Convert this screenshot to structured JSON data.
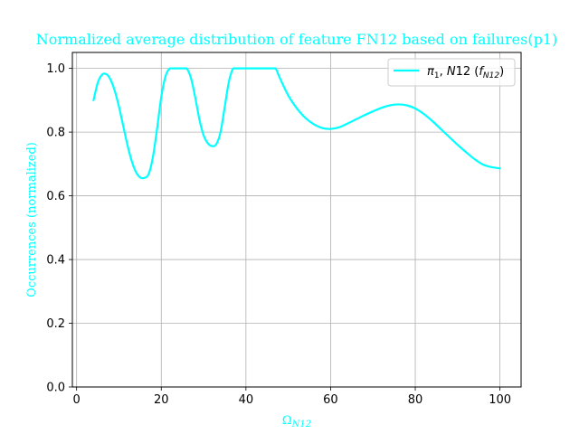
{
  "colors": {
    "accent": "#00ffff",
    "grid": "#b0b0b0",
    "axis": "#000000",
    "background": "#ffffff"
  },
  "chart_data": {
    "type": "line",
    "title": "Normalized average distribution of feature FN12 based on failures(p1)",
    "xlabel": "Ω",
    "xlabel_sub": "N12",
    "ylabel": "Occurrences (normalized)",
    "xlim": [
      -1,
      105
    ],
    "ylim": [
      0,
      1.05
    ],
    "xticks": [
      0,
      20,
      40,
      60,
      80,
      100
    ],
    "yticks": [
      0.0,
      0.2,
      0.4,
      0.6,
      0.8,
      1.0
    ],
    "xtick_labels": [
      "0",
      "20",
      "40",
      "60",
      "80",
      "100"
    ],
    "ytick_labels": [
      "0.0",
      "0.2",
      "0.4",
      "0.6",
      "0.8",
      "1.0"
    ],
    "grid": true,
    "legend_position": "top-right",
    "series": [
      {
        "name": "π1, N12 (fN12)",
        "legend": {
          "pi": "π",
          "pi_sub": "1",
          "mid": ", ",
          "n": "N",
          "n12": "12",
          "open": " (",
          "f": "f",
          "f_sub": "N12",
          "close": ")"
        },
        "color": "#00ffff",
        "x": [
          4,
          5,
          6,
          7,
          8,
          9,
          10,
          11,
          12,
          13,
          14,
          15,
          16,
          17,
          18,
          19,
          20,
          21,
          22,
          23,
          24,
          25,
          26,
          27,
          28,
          29,
          30,
          31,
          32,
          33,
          34,
          35,
          36,
          37,
          38,
          40,
          42,
          44,
          46,
          47,
          48,
          50,
          52,
          54,
          56,
          58,
          60,
          62,
          64,
          66,
          68,
          70,
          72,
          74,
          76,
          78,
          80,
          82,
          84,
          86,
          88,
          90,
          92,
          94,
          96,
          98,
          100
        ],
        "y": [
          0.9,
          0.955,
          0.98,
          0.982,
          0.965,
          0.93,
          0.88,
          0.82,
          0.76,
          0.71,
          0.675,
          0.658,
          0.656,
          0.668,
          0.72,
          0.81,
          0.91,
          0.975,
          1.0,
          1.0,
          1.0,
          1.0,
          1.0,
          0.97,
          0.91,
          0.84,
          0.79,
          0.765,
          0.756,
          0.762,
          0.8,
          0.88,
          0.96,
          1.0,
          1.0,
          1.0,
          1.0,
          1.0,
          1.0,
          1.0,
          0.97,
          0.915,
          0.875,
          0.845,
          0.825,
          0.813,
          0.81,
          0.815,
          0.827,
          0.84,
          0.853,
          0.865,
          0.876,
          0.884,
          0.887,
          0.884,
          0.874,
          0.857,
          0.835,
          0.81,
          0.785,
          0.76,
          0.737,
          0.715,
          0.698,
          0.69,
          0.686
        ]
      }
    ]
  }
}
